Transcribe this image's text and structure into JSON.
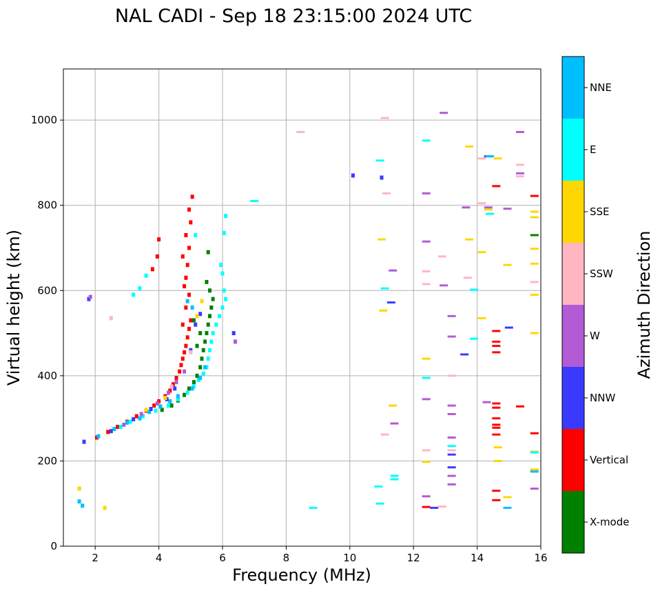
{
  "chart_data": {
    "type": "scatter",
    "title": "NAL CADI - Sep 18 23:15:00 2024 UTC",
    "xlabel": "Frequency (MHz)",
    "ylabel": "Virtual height (km)",
    "xlim": [
      1,
      16
    ],
    "ylim": [
      0,
      1120
    ],
    "xticks": [
      2,
      4,
      6,
      8,
      10,
      12,
      14,
      16
    ],
    "yticks": [
      0,
      200,
      400,
      600,
      800,
      1000
    ],
    "grid": true,
    "colorbar": {
      "label": "Azimuth Direction",
      "categories": [
        {
          "name": "X-mode",
          "color": "#008000"
        },
        {
          "name": "Vertical",
          "color": "#ff0000"
        },
        {
          "name": "NNW",
          "color": "#3a3aff"
        },
        {
          "name": "W",
          "color": "#b35ad6"
        },
        {
          "name": "SSW",
          "color": "#ffb6c1"
        },
        {
          "name": "SSE",
          "color": "#ffd700"
        },
        {
          "name": "E",
          "color": "#00ffff"
        },
        {
          "name": "NNE",
          "color": "#00bfff"
        }
      ]
    },
    "trace_series": [
      {
        "name": "Vertical",
        "points": [
          [
            2.05,
            255
          ],
          [
            2.4,
            268
          ],
          [
            2.7,
            280
          ],
          [
            3.0,
            292
          ],
          [
            3.3,
            305
          ],
          [
            3.6,
            318
          ],
          [
            3.85,
            330
          ],
          [
            4.0,
            340
          ],
          [
            4.2,
            352
          ],
          [
            4.35,
            365
          ],
          [
            4.45,
            380
          ],
          [
            4.55,
            395
          ],
          [
            4.65,
            410
          ],
          [
            4.7,
            425
          ],
          [
            4.75,
            440
          ],
          [
            4.8,
            455
          ],
          [
            4.85,
            470
          ],
          [
            4.9,
            490
          ],
          [
            4.95,
            510
          ],
          [
            5.0,
            530
          ],
          [
            4.75,
            520
          ],
          [
            4.85,
            560
          ],
          [
            4.95,
            590
          ],
          [
            4.8,
            610
          ],
          [
            4.85,
            630
          ],
          [
            4.9,
            660
          ],
          [
            4.75,
            680
          ],
          [
            4.95,
            700
          ],
          [
            4.85,
            730
          ],
          [
            5.0,
            760
          ],
          [
            4.95,
            790
          ],
          [
            5.05,
            820
          ],
          [
            4.0,
            720
          ],
          [
            3.95,
            680
          ],
          [
            3.8,
            650
          ]
        ]
      },
      {
        "name": "X-mode",
        "points": [
          [
            4.1,
            320
          ],
          [
            4.4,
            330
          ],
          [
            4.6,
            342
          ],
          [
            4.8,
            355
          ],
          [
            4.95,
            370
          ],
          [
            5.1,
            385
          ],
          [
            5.2,
            400
          ],
          [
            5.3,
            420
          ],
          [
            5.35,
            440
          ],
          [
            5.4,
            460
          ],
          [
            5.45,
            480
          ],
          [
            5.5,
            500
          ],
          [
            5.55,
            520
          ],
          [
            5.6,
            540
          ],
          [
            5.65,
            560
          ],
          [
            5.7,
            580
          ],
          [
            5.6,
            600
          ],
          [
            5.5,
            620
          ],
          [
            5.55,
            690
          ],
          [
            5.2,
            470
          ],
          [
            5.3,
            500
          ],
          [
            5.1,
            530
          ]
        ]
      },
      {
        "name": "E",
        "points": [
          [
            2.8,
            280
          ],
          [
            3.1,
            292
          ],
          [
            3.5,
            305
          ],
          [
            3.9,
            318
          ],
          [
            4.3,
            330
          ],
          [
            4.6,
            345
          ],
          [
            4.9,
            360
          ],
          [
            5.1,
            375
          ],
          [
            5.25,
            390
          ],
          [
            5.4,
            405
          ],
          [
            5.5,
            420
          ],
          [
            5.55,
            440
          ],
          [
            5.6,
            460
          ],
          [
            5.65,
            480
          ],
          [
            5.7,
            500
          ],
          [
            5.8,
            520
          ],
          [
            5.9,
            540
          ],
          [
            6.0,
            560
          ],
          [
            6.1,
            580
          ],
          [
            6.05,
            600
          ],
          [
            6.0,
            640
          ],
          [
            5.95,
            660
          ],
          [
            6.05,
            735
          ],
          [
            6.1,
            775
          ],
          [
            5.15,
            730
          ],
          [
            3.4,
            605
          ],
          [
            3.2,
            590
          ],
          [
            3.6,
            635
          ]
        ]
      },
      {
        "name": "NNE",
        "points": [
          [
            1.5,
            105
          ],
          [
            1.6,
            95
          ],
          [
            2.1,
            258
          ],
          [
            2.6,
            275
          ],
          [
            3.0,
            290
          ],
          [
            3.4,
            300
          ],
          [
            3.7,
            315
          ],
          [
            4.05,
            328
          ],
          [
            4.35,
            340
          ],
          [
            4.6,
            352
          ],
          [
            5.05,
            370
          ],
          [
            5.3,
            395
          ],
          [
            5.45,
            420
          ],
          [
            4.9,
            575
          ],
          [
            5.05,
            560
          ]
        ]
      },
      {
        "name": "NNW",
        "points": [
          [
            1.65,
            245
          ],
          [
            1.8,
            580
          ],
          [
            2.5,
            270
          ],
          [
            3.2,
            298
          ],
          [
            3.75,
            322
          ],
          [
            4.25,
            345
          ],
          [
            4.5,
            370
          ],
          [
            5.0,
            460
          ],
          [
            5.15,
            520
          ],
          [
            5.3,
            545
          ],
          [
            6.35,
            500
          ],
          [
            6.4,
            480
          ],
          [
            10.1,
            870
          ],
          [
            11.0,
            865
          ]
        ]
      },
      {
        "name": "W",
        "points": [
          [
            1.85,
            585
          ],
          [
            2.9,
            285
          ],
          [
            3.45,
            310
          ],
          [
            3.95,
            335
          ],
          [
            4.3,
            360
          ],
          [
            4.55,
            385
          ],
          [
            4.8,
            410
          ],
          [
            6.4,
            480
          ]
        ]
      },
      {
        "name": "SSE",
        "points": [
          [
            1.5,
            135
          ],
          [
            2.3,
            90
          ],
          [
            3.6,
            320
          ],
          [
            4.2,
            348
          ],
          [
            5.35,
            575
          ],
          [
            5.2,
            540
          ]
        ]
      },
      {
        "name": "SSW",
        "points": [
          [
            2.5,
            535
          ],
          [
            4.4,
            375
          ],
          [
            5.0,
            455
          ]
        ]
      }
    ],
    "echo_series": [
      {
        "name": "X-mode",
        "points": [
          [
            15.8,
            730
          ]
        ]
      },
      {
        "name": "Vertical",
        "points": [
          [
            14.6,
            845
          ],
          [
            14.6,
            505
          ],
          [
            14.6,
            480
          ],
          [
            14.6,
            470
          ],
          [
            14.6,
            455
          ],
          [
            14.6,
            335
          ],
          [
            14.6,
            325
          ],
          [
            14.6,
            300
          ],
          [
            14.6,
            285
          ],
          [
            14.6,
            278
          ],
          [
            14.6,
            262
          ],
          [
            14.6,
            130
          ],
          [
            14.6,
            108
          ],
          [
            15.35,
            328
          ],
          [
            15.8,
            822
          ],
          [
            15.8,
            265
          ],
          [
            12.4,
            92
          ]
        ]
      },
      {
        "name": "NNW",
        "points": [
          [
            12.65,
            90
          ],
          [
            13.6,
            450
          ],
          [
            13.2,
            215
          ],
          [
            13.2,
            185
          ],
          [
            14.35,
            915
          ],
          [
            15.0,
            513
          ],
          [
            11.3,
            572
          ]
        ]
      },
      {
        "name": "W",
        "points": [
          [
            13.2,
            540
          ],
          [
            13.2,
            492
          ],
          [
            13.2,
            330
          ],
          [
            13.2,
            310
          ],
          [
            13.2,
            255
          ],
          [
            13.2,
            165
          ],
          [
            13.2,
            145
          ],
          [
            12.4,
            117
          ],
          [
            12.4,
            345
          ],
          [
            12.4,
            715
          ],
          [
            12.4,
            828
          ],
          [
            12.95,
            612
          ],
          [
            12.95,
            1017
          ],
          [
            13.65,
            795
          ],
          [
            14.35,
            795
          ],
          [
            14.95,
            792
          ],
          [
            15.35,
            972
          ],
          [
            15.35,
            875
          ],
          [
            15.8,
            178
          ],
          [
            15.8,
            135
          ],
          [
            11.35,
            647
          ],
          [
            11.4,
            288
          ],
          [
            14.3,
            338
          ]
        ]
      },
      {
        "name": "SSW",
        "points": [
          [
            8.45,
            972
          ],
          [
            11.1,
            1005
          ],
          [
            11.15,
            828
          ],
          [
            11.1,
            262
          ],
          [
            12.4,
            645
          ],
          [
            12.4,
            615
          ],
          [
            12.4,
            225
          ],
          [
            13.2,
            400
          ],
          [
            12.9,
            680
          ],
          [
            13.7,
            630
          ],
          [
            14.15,
            910
          ],
          [
            14.15,
            805
          ],
          [
            15.35,
            895
          ],
          [
            15.35,
            868
          ],
          [
            15.8,
            620
          ],
          [
            12.9,
            93
          ],
          [
            13.2,
            225
          ]
        ]
      },
      {
        "name": "SSE",
        "points": [
          [
            11.0,
            720
          ],
          [
            11.05,
            553
          ],
          [
            11.35,
            330
          ],
          [
            12.4,
            440
          ],
          [
            12.4,
            198
          ],
          [
            13.75,
            938
          ],
          [
            13.75,
            720
          ],
          [
            14.15,
            690
          ],
          [
            14.15,
            535
          ],
          [
            14.35,
            790
          ],
          [
            14.65,
            910
          ],
          [
            14.65,
            232
          ],
          [
            14.65,
            200
          ],
          [
            14.95,
            660
          ],
          [
            14.95,
            115
          ],
          [
            15.8,
            785
          ],
          [
            15.8,
            772
          ],
          [
            15.8,
            698
          ],
          [
            15.8,
            663
          ],
          [
            15.8,
            590
          ],
          [
            15.8,
            500
          ],
          [
            15.8,
            222
          ],
          [
            15.8,
            180
          ]
        ]
      },
      {
        "name": "E",
        "points": [
          [
            8.85,
            90
          ],
          [
            10.95,
            905
          ],
          [
            10.9,
            140
          ],
          [
            10.95,
            100
          ],
          [
            11.1,
            605
          ],
          [
            11.4,
            165
          ],
          [
            11.4,
            157
          ],
          [
            12.4,
            952
          ],
          [
            12.4,
            395
          ],
          [
            13.2,
            235
          ],
          [
            13.9,
            602
          ],
          [
            13.9,
            487
          ],
          [
            14.4,
            780
          ],
          [
            15.8,
            220
          ],
          [
            7.0,
            810
          ]
        ]
      },
      {
        "name": "NNE",
        "points": [
          [
            14.95,
            90
          ],
          [
            14.4,
            915
          ],
          [
            15.8,
            175
          ]
        ]
      }
    ]
  }
}
